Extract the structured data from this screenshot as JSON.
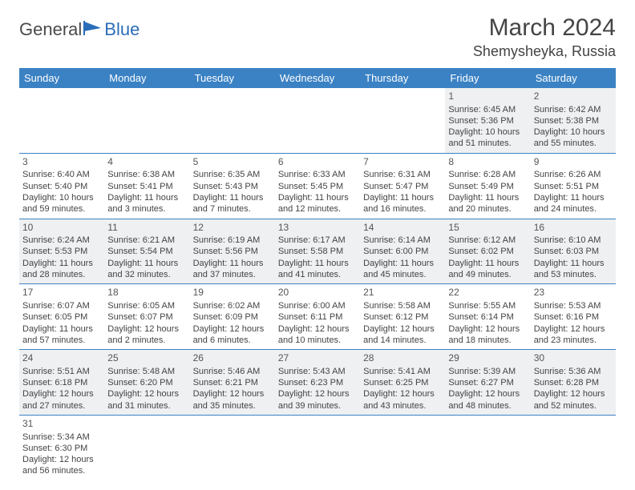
{
  "logo": {
    "part1": "General",
    "part2": "Blue"
  },
  "title": "March 2024",
  "location": "Shemysheyka, Russia",
  "colors": {
    "header_bg": "#3b82c4",
    "header_text": "#ffffff",
    "row_alt_bg": "#eef0f1",
    "border": "#3b82c4",
    "text": "#444444",
    "logo_gray": "#4a4a4a",
    "logo_blue": "#2a6db8"
  },
  "day_headers": [
    "Sunday",
    "Monday",
    "Tuesday",
    "Wednesday",
    "Thursday",
    "Friday",
    "Saturday"
  ],
  "weeks": [
    [
      null,
      null,
      null,
      null,
      null,
      {
        "n": "1",
        "sr": "Sunrise: 6:45 AM",
        "ss": "Sunset: 5:36 PM",
        "d1": "Daylight: 10 hours",
        "d2": "and 51 minutes."
      },
      {
        "n": "2",
        "sr": "Sunrise: 6:42 AM",
        "ss": "Sunset: 5:38 PM",
        "d1": "Daylight: 10 hours",
        "d2": "and 55 minutes."
      }
    ],
    [
      {
        "n": "3",
        "sr": "Sunrise: 6:40 AM",
        "ss": "Sunset: 5:40 PM",
        "d1": "Daylight: 10 hours",
        "d2": "and 59 minutes."
      },
      {
        "n": "4",
        "sr": "Sunrise: 6:38 AM",
        "ss": "Sunset: 5:41 PM",
        "d1": "Daylight: 11 hours",
        "d2": "and 3 minutes."
      },
      {
        "n": "5",
        "sr": "Sunrise: 6:35 AM",
        "ss": "Sunset: 5:43 PM",
        "d1": "Daylight: 11 hours",
        "d2": "and 7 minutes."
      },
      {
        "n": "6",
        "sr": "Sunrise: 6:33 AM",
        "ss": "Sunset: 5:45 PM",
        "d1": "Daylight: 11 hours",
        "d2": "and 12 minutes."
      },
      {
        "n": "7",
        "sr": "Sunrise: 6:31 AM",
        "ss": "Sunset: 5:47 PM",
        "d1": "Daylight: 11 hours",
        "d2": "and 16 minutes."
      },
      {
        "n": "8",
        "sr": "Sunrise: 6:28 AM",
        "ss": "Sunset: 5:49 PM",
        "d1": "Daylight: 11 hours",
        "d2": "and 20 minutes."
      },
      {
        "n": "9",
        "sr": "Sunrise: 6:26 AM",
        "ss": "Sunset: 5:51 PM",
        "d1": "Daylight: 11 hours",
        "d2": "and 24 minutes."
      }
    ],
    [
      {
        "n": "10",
        "sr": "Sunrise: 6:24 AM",
        "ss": "Sunset: 5:53 PM",
        "d1": "Daylight: 11 hours",
        "d2": "and 28 minutes."
      },
      {
        "n": "11",
        "sr": "Sunrise: 6:21 AM",
        "ss": "Sunset: 5:54 PM",
        "d1": "Daylight: 11 hours",
        "d2": "and 32 minutes."
      },
      {
        "n": "12",
        "sr": "Sunrise: 6:19 AM",
        "ss": "Sunset: 5:56 PM",
        "d1": "Daylight: 11 hours",
        "d2": "and 37 minutes."
      },
      {
        "n": "13",
        "sr": "Sunrise: 6:17 AM",
        "ss": "Sunset: 5:58 PM",
        "d1": "Daylight: 11 hours",
        "d2": "and 41 minutes."
      },
      {
        "n": "14",
        "sr": "Sunrise: 6:14 AM",
        "ss": "Sunset: 6:00 PM",
        "d1": "Daylight: 11 hours",
        "d2": "and 45 minutes."
      },
      {
        "n": "15",
        "sr": "Sunrise: 6:12 AM",
        "ss": "Sunset: 6:02 PM",
        "d1": "Daylight: 11 hours",
        "d2": "and 49 minutes."
      },
      {
        "n": "16",
        "sr": "Sunrise: 6:10 AM",
        "ss": "Sunset: 6:03 PM",
        "d1": "Daylight: 11 hours",
        "d2": "and 53 minutes."
      }
    ],
    [
      {
        "n": "17",
        "sr": "Sunrise: 6:07 AM",
        "ss": "Sunset: 6:05 PM",
        "d1": "Daylight: 11 hours",
        "d2": "and 57 minutes."
      },
      {
        "n": "18",
        "sr": "Sunrise: 6:05 AM",
        "ss": "Sunset: 6:07 PM",
        "d1": "Daylight: 12 hours",
        "d2": "and 2 minutes."
      },
      {
        "n": "19",
        "sr": "Sunrise: 6:02 AM",
        "ss": "Sunset: 6:09 PM",
        "d1": "Daylight: 12 hours",
        "d2": "and 6 minutes."
      },
      {
        "n": "20",
        "sr": "Sunrise: 6:00 AM",
        "ss": "Sunset: 6:11 PM",
        "d1": "Daylight: 12 hours",
        "d2": "and 10 minutes."
      },
      {
        "n": "21",
        "sr": "Sunrise: 5:58 AM",
        "ss": "Sunset: 6:12 PM",
        "d1": "Daylight: 12 hours",
        "d2": "and 14 minutes."
      },
      {
        "n": "22",
        "sr": "Sunrise: 5:55 AM",
        "ss": "Sunset: 6:14 PM",
        "d1": "Daylight: 12 hours",
        "d2": "and 18 minutes."
      },
      {
        "n": "23",
        "sr": "Sunrise: 5:53 AM",
        "ss": "Sunset: 6:16 PM",
        "d1": "Daylight: 12 hours",
        "d2": "and 23 minutes."
      }
    ],
    [
      {
        "n": "24",
        "sr": "Sunrise: 5:51 AM",
        "ss": "Sunset: 6:18 PM",
        "d1": "Daylight: 12 hours",
        "d2": "and 27 minutes."
      },
      {
        "n": "25",
        "sr": "Sunrise: 5:48 AM",
        "ss": "Sunset: 6:20 PM",
        "d1": "Daylight: 12 hours",
        "d2": "and 31 minutes."
      },
      {
        "n": "26",
        "sr": "Sunrise: 5:46 AM",
        "ss": "Sunset: 6:21 PM",
        "d1": "Daylight: 12 hours",
        "d2": "and 35 minutes."
      },
      {
        "n": "27",
        "sr": "Sunrise: 5:43 AM",
        "ss": "Sunset: 6:23 PM",
        "d1": "Daylight: 12 hours",
        "d2": "and 39 minutes."
      },
      {
        "n": "28",
        "sr": "Sunrise: 5:41 AM",
        "ss": "Sunset: 6:25 PM",
        "d1": "Daylight: 12 hours",
        "d2": "and 43 minutes."
      },
      {
        "n": "29",
        "sr": "Sunrise: 5:39 AM",
        "ss": "Sunset: 6:27 PM",
        "d1": "Daylight: 12 hours",
        "d2": "and 48 minutes."
      },
      {
        "n": "30",
        "sr": "Sunrise: 5:36 AM",
        "ss": "Sunset: 6:28 PM",
        "d1": "Daylight: 12 hours",
        "d2": "and 52 minutes."
      }
    ],
    [
      {
        "n": "31",
        "sr": "Sunrise: 5:34 AM",
        "ss": "Sunset: 6:30 PM",
        "d1": "Daylight: 12 hours",
        "d2": "and 56 minutes."
      },
      null,
      null,
      null,
      null,
      null,
      null
    ]
  ]
}
